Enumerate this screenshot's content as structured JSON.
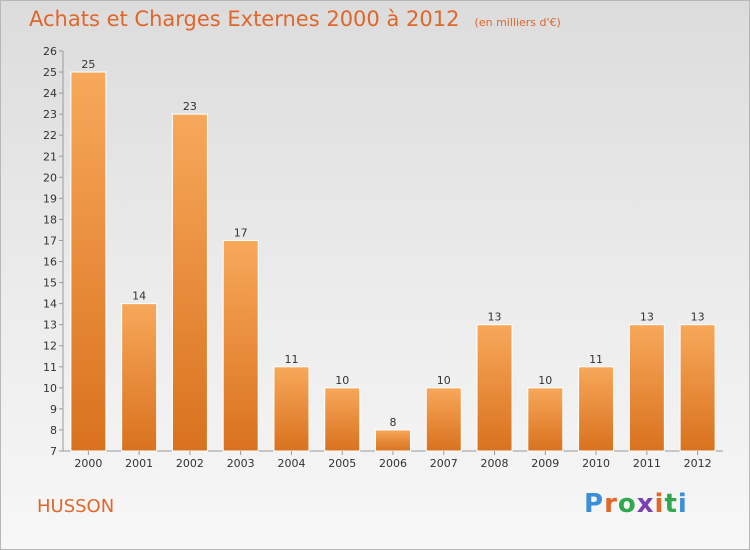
{
  "title": "Achats et Charges Externes 2000 à 2012",
  "unit_note": "(en milliers d'€)",
  "commune": "HUSSON",
  "logo": {
    "text": "Proxiti",
    "colors": [
      "#3a8fd9",
      "#e0662a",
      "#2fa84f",
      "#7a3fb0",
      "#e0662a",
      "#2fa84f",
      "#3a8fd9"
    ]
  },
  "colors": {
    "bar_light": "#f7a85a",
    "bar_dark": "#d9721e",
    "accent": "#e0662a"
  },
  "chart_data": {
    "type": "bar",
    "title": "Achats et Charges Externes 2000 à 2012",
    "xlabel": "",
    "ylabel": "",
    "categories": [
      "2000",
      "2001",
      "2002",
      "2003",
      "2004",
      "2005",
      "2006",
      "2007",
      "2008",
      "2009",
      "2010",
      "2011",
      "2012"
    ],
    "values": [
      25,
      14,
      23,
      17,
      11,
      10,
      8,
      10,
      13,
      10,
      11,
      13,
      13
    ],
    "ylim": [
      7,
      26
    ],
    "yticks": [
      7,
      8,
      9,
      10,
      11,
      12,
      13,
      14,
      15,
      16,
      17,
      18,
      19,
      20,
      21,
      22,
      23,
      24,
      25,
      26
    ],
    "grid": false,
    "legend": "none"
  }
}
